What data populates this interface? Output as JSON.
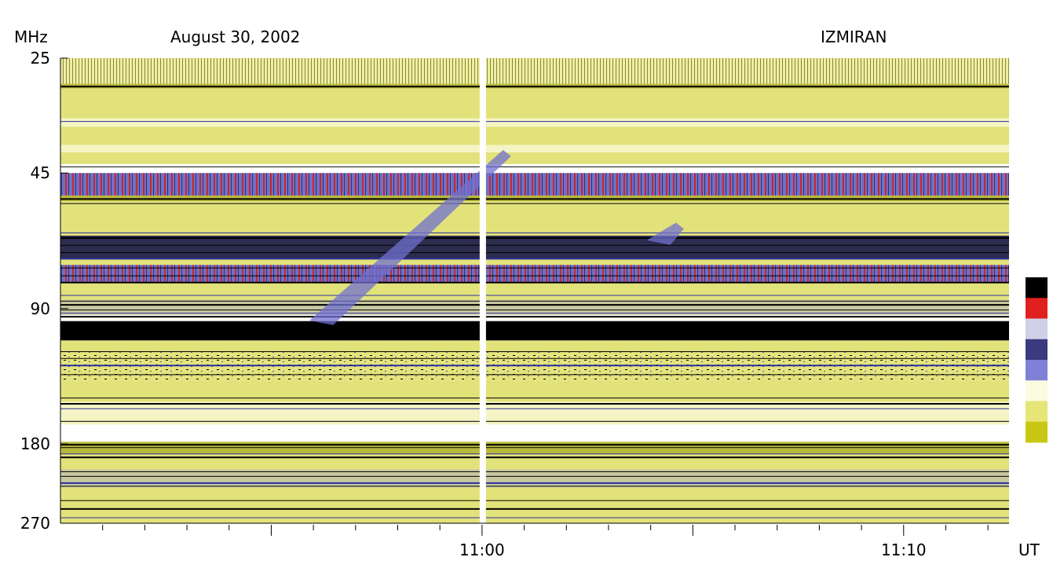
{
  "header": {
    "unit": "MHz",
    "date": "August 30, 2002",
    "observatory": "IZMIRAN",
    "x_unit": "UT"
  },
  "colors": {
    "scale": [
      "#c8c814",
      "#e6e678",
      "#fbfbe0",
      "#8080d8",
      "#3a3a80",
      "#d0d0e8",
      "#e02020",
      "#000000"
    ]
  },
  "chart_data": {
    "type": "heatmap",
    "title": "August 30, 2002",
    "observatory": "IZMIRAN",
    "ylabel": "MHz",
    "xlabel": "UT",
    "y_scale": "log",
    "y_ticks": [
      25,
      45,
      90,
      180,
      270
    ],
    "y_tick_labels": [
      "25",
      "45",
      "90",
      "180",
      "270"
    ],
    "ylim": [
      25,
      270
    ],
    "x_start_min": -10.0,
    "x_end_min": 12.5,
    "x_major_ticks": [
      -5,
      0,
      5,
      10
    ],
    "x_tick_labels": [
      {
        "minute": 0,
        "label": "11:00"
      },
      {
        "minute": 10,
        "label": "11:10"
      }
    ],
    "bands": [
      {
        "fmin": 25,
        "fmax": 28.5,
        "level": "light-striped"
      },
      {
        "fmin": 28.5,
        "fmax": 29.2,
        "level": "medium"
      },
      {
        "fmin": 29.2,
        "fmax": 34,
        "level": "light"
      },
      {
        "fmin": 34,
        "fmax": 35.5,
        "level": "pale"
      },
      {
        "fmin": 35.5,
        "fmax": 39,
        "level": "light"
      },
      {
        "fmin": 39,
        "fmax": 40.5,
        "level": "pale"
      },
      {
        "fmin": 40.5,
        "fmax": 43,
        "level": "light"
      },
      {
        "fmin": 43,
        "fmax": 45,
        "level": "white"
      },
      {
        "fmin": 45,
        "fmax": 50.5,
        "level": "intense"
      },
      {
        "fmin": 50.5,
        "fmax": 52,
        "level": "medium"
      },
      {
        "fmin": 52,
        "fmax": 62,
        "level": "light"
      },
      {
        "fmin": 62,
        "fmax": 70,
        "level": "strong"
      },
      {
        "fmin": 70,
        "fmax": 72,
        "level": "light"
      },
      {
        "fmin": 72,
        "fmax": 79,
        "level": "intense"
      },
      {
        "fmin": 79,
        "fmax": 86,
        "level": "light"
      },
      {
        "fmin": 86,
        "fmax": 93,
        "level": "banded"
      },
      {
        "fmin": 93,
        "fmax": 96,
        "level": "white"
      },
      {
        "fmin": 96,
        "fmax": 106,
        "level": "saturated"
      },
      {
        "fmin": 106,
        "fmax": 112,
        "level": "light"
      },
      {
        "fmin": 112,
        "fmax": 130,
        "level": "light-dotted"
      },
      {
        "fmin": 130,
        "fmax": 145,
        "level": "light"
      },
      {
        "fmin": 145,
        "fmax": 163,
        "level": "pale"
      },
      {
        "fmin": 163,
        "fmax": 178,
        "level": "white"
      },
      {
        "fmin": 178,
        "fmax": 190,
        "level": "medium"
      },
      {
        "fmin": 190,
        "fmax": 205,
        "level": "light"
      },
      {
        "fmin": 205,
        "fmax": 225,
        "level": "banded"
      },
      {
        "fmin": 225,
        "fmax": 270,
        "level": "light"
      }
    ],
    "features": [
      {
        "label": "burst",
        "t_start": -4.0,
        "t_end": 0.5,
        "f_start": 40,
        "f_end": 98
      },
      {
        "label": "burst",
        "t_start": 4.0,
        "t_end": 4.6,
        "f_start": 58,
        "f_end": 65
      }
    ],
    "data_gap_minute": 0.0,
    "colorbar_levels": [
      "light",
      "medium",
      "blue",
      "red",
      "black"
    ]
  }
}
